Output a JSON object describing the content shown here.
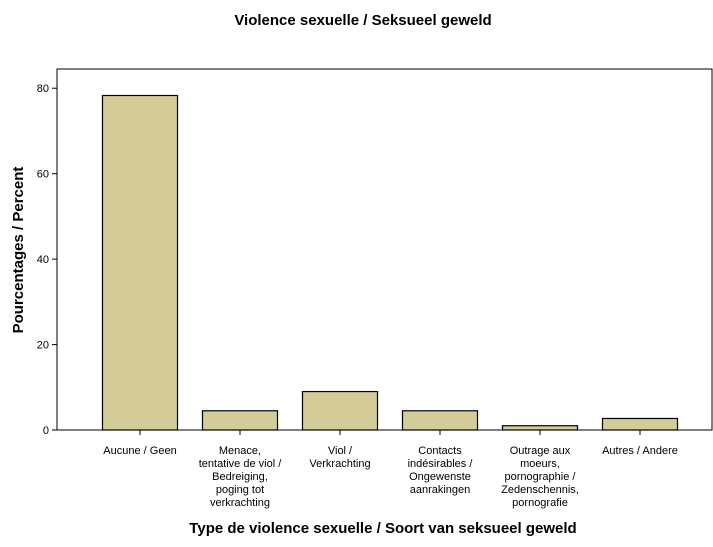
{
  "chart_data": {
    "type": "bar",
    "title": "Violence sexuelle / Seksueel geweld",
    "xlabel": "Type de violence sexuelle / Soort van seksueel geweld",
    "ylabel": "Pourcentages / Percent",
    "categories": [
      "Aucune / Geen",
      "Menace, tentative de viol / Bedreiging, poging tot verkrachting",
      "Viol / Verkrachting",
      "Contacts indésirables / Ongewenste aanrakingen",
      "Outrage aux moeurs, pornographie / Zedenschennis, pornografie",
      "Autres / Andere"
    ],
    "category_lines": [
      [
        "Aucune / Geen"
      ],
      [
        "Menace,",
        "tentative de viol /",
        "Bedreiging,",
        "poging tot",
        "verkrachting"
      ],
      [
        "Viol /",
        "Verkrachting"
      ],
      [
        "Contacts",
        "indésirables /",
        "Ongewenste",
        "aanrakingen"
      ],
      [
        "Outrage aux",
        "moeurs,",
        "pornographie /",
        "Zedenschennis,",
        "pornografie"
      ],
      [
        "Autres / Andere"
      ]
    ],
    "values": [
      78.3,
      4.5,
      9.0,
      4.5,
      1.0,
      2.7
    ],
    "ylim": [
      0,
      84.5
    ],
    "yticks": [
      0,
      20,
      40,
      60,
      80
    ],
    "grid": false,
    "legend": "none",
    "colors": {
      "bar_fill": "#d3cc99",
      "bar_stroke": "#000000"
    }
  }
}
